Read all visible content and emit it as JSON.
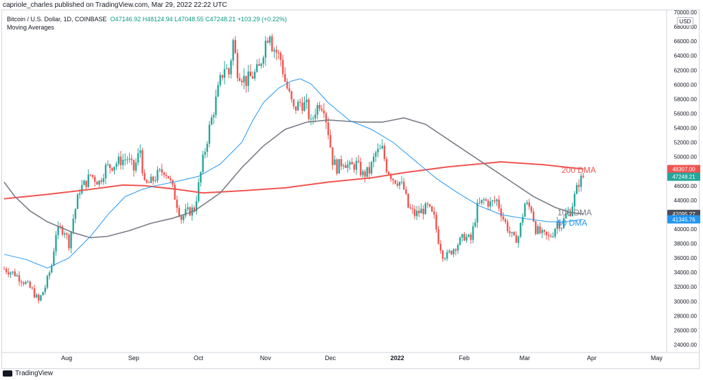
{
  "header": {
    "published": "capriole_charles published on TradingView.com, Mar 29, 2022 22:22 UTC"
  },
  "legend": {
    "symbol": "Bitcoin / U.S. Dollar, 1D, COINBASE",
    "ohlc": "O47146.92 H48124.94 L47048.55 C47248.21 +103.29 (+0.22%)",
    "indicator": "Moving Averages"
  },
  "footer": {
    "brand": "TradingView"
  },
  "currency": "USD",
  "colors": {
    "up": "#26a69a",
    "down": "#ef5350",
    "dma200": "#ef5350",
    "dma100": "#787b86",
    "dma50": "#2196f3"
  },
  "chart_data": {
    "type": "candlestick",
    "y_range": [
      23000,
      70000
    ],
    "y_ticks": [
      24000,
      26000,
      28000,
      30000,
      32000,
      34000,
      36000,
      38000,
      40000,
      42000,
      44000,
      46000,
      48000,
      50000,
      52000,
      54000,
      56000,
      58000,
      60000,
      62000,
      64000,
      66000,
      68000,
      70000
    ],
    "y_tick_labels": [
      "24000.00",
      "26000.00",
      "28000.00",
      "30000.00",
      "32000.00",
      "34000.00",
      "36000.00",
      "38000.00",
      "40000.00",
      "42000.00",
      "44000.00",
      "46000.00",
      "48000.00",
      "50000.00",
      "52000.00",
      "54000.00",
      "56000.00",
      "58000.00",
      "60000.00",
      "62000.00",
      "64000.00",
      "66000.00",
      "68000.00",
      "70000.00"
    ],
    "x_ticks": [
      {
        "label": "Aug",
        "day": 28
      },
      {
        "label": "Sep",
        "day": 59
      },
      {
        "label": "Oct",
        "day": 89
      },
      {
        "label": "Nov",
        "day": 120
      },
      {
        "label": "Dec",
        "day": 150
      },
      {
        "label": "2022",
        "day": 181
      },
      {
        "label": "Feb",
        "day": 212
      },
      {
        "label": "Mar",
        "day": 240
      },
      {
        "label": "Apr",
        "day": 271
      },
      {
        "label": "May",
        "day": 301
      }
    ],
    "close_points": [
      [
        0,
        34500
      ],
      [
        5,
        33800
      ],
      [
        10,
        32500
      ],
      [
        13,
        31500
      ],
      [
        16,
        30000
      ],
      [
        19,
        32000
      ],
      [
        22,
        35000
      ],
      [
        24,
        39500
      ],
      [
        26,
        40000
      ],
      [
        28,
        39800
      ],
      [
        30,
        38000
      ],
      [
        32,
        41500
      ],
      [
        35,
        45500
      ],
      [
        38,
        46500
      ],
      [
        40,
        47500
      ],
      [
        44,
        46500
      ],
      [
        47,
        48500
      ],
      [
        50,
        48800
      ],
      [
        54,
        49500
      ],
      [
        57,
        49800
      ],
      [
        60,
        48200
      ],
      [
        63,
        51000
      ],
      [
        65,
        46000
      ],
      [
        68,
        46500
      ],
      [
        71,
        47500
      ],
      [
        74,
        48200
      ],
      [
        76,
        47300
      ],
      [
        78,
        45500
      ],
      [
        80,
        43500
      ],
      [
        82,
        41500
      ],
      [
        84,
        42200
      ],
      [
        86,
        42500
      ],
      [
        88,
        42800
      ],
      [
        90,
        46000
      ],
      [
        92,
        49500
      ],
      [
        95,
        54000
      ],
      [
        97,
        56500
      ],
      [
        100,
        60500
      ],
      [
        102,
        62500
      ],
      [
        104,
        61500
      ],
      [
        106,
        66000
      ],
      [
        108,
        62000
      ],
      [
        110,
        61200
      ],
      [
        112,
        60500
      ],
      [
        114,
        61000
      ],
      [
        116,
        61500
      ],
      [
        118,
        62200
      ],
      [
        121,
        66000
      ],
      [
        123,
        67500
      ],
      [
        124,
        65500
      ],
      [
        126,
        64500
      ],
      [
        128,
        63500
      ],
      [
        130,
        60500
      ],
      [
        132,
        58500
      ],
      [
        134,
        56500
      ],
      [
        137,
        57500
      ],
      [
        140,
        57000
      ],
      [
        142,
        54500
      ],
      [
        144,
        56500
      ],
      [
        146,
        57500
      ],
      [
        148,
        57000
      ],
      [
        150,
        53500
      ],
      [
        152,
        49500
      ],
      [
        154,
        48500
      ],
      [
        157,
        49500
      ],
      [
        160,
        48500
      ],
      [
        163,
        49000
      ],
      [
        166,
        47500
      ],
      [
        169,
        48000
      ],
      [
        172,
        50500
      ],
      [
        175,
        51000
      ],
      [
        177,
        48500
      ],
      [
        180,
        47000
      ],
      [
        183,
        46500
      ],
      [
        185,
        45500
      ],
      [
        187,
        43000
      ],
      [
        190,
        42000
      ],
      [
        193,
        42500
      ],
      [
        196,
        43000
      ],
      [
        199,
        41500
      ],
      [
        201,
        38500
      ],
      [
        203,
        36500
      ],
      [
        205,
        36300
      ],
      [
        207,
        37000
      ],
      [
        210,
        38000
      ],
      [
        213,
        39000
      ],
      [
        216,
        38500
      ],
      [
        219,
        43000
      ],
      [
        222,
        44000
      ],
      [
        225,
        43500
      ],
      [
        228,
        44000
      ],
      [
        231,
        41500
      ],
      [
        234,
        39500
      ],
      [
        236,
        38500
      ],
      [
        238,
        39000
      ],
      [
        241,
        43500
      ],
      [
        244,
        42800
      ],
      [
        246,
        40000
      ],
      [
        249,
        39200
      ],
      [
        252,
        38800
      ],
      [
        254,
        39500
      ],
      [
        256,
        41000
      ],
      [
        258,
        40500
      ],
      [
        260,
        42000
      ],
      [
        262,
        42500
      ],
      [
        264,
        44500
      ],
      [
        266,
        46500
      ],
      [
        268,
        47200
      ]
    ],
    "series": [
      {
        "name": "200 DMA",
        "color": "#ef5350",
        "points": [
          [
            0,
            44200
          ],
          [
            20,
            44800
          ],
          [
            40,
            45500
          ],
          [
            55,
            46100
          ],
          [
            65,
            46000
          ],
          [
            80,
            45500
          ],
          [
            92,
            45000
          ],
          [
            110,
            45300
          ],
          [
            130,
            45700
          ],
          [
            150,
            46500
          ],
          [
            170,
            47100
          ],
          [
            185,
            47800
          ],
          [
            205,
            48600
          ],
          [
            230,
            49300
          ],
          [
            250,
            48900
          ],
          [
            268,
            48300
          ]
        ],
        "last_label": "48307.00"
      },
      {
        "name": "100 DMA",
        "color": "#787b86",
        "points": [
          [
            0,
            46500
          ],
          [
            5,
            44500
          ],
          [
            12,
            42500
          ],
          [
            20,
            41000
          ],
          [
            32,
            39500
          ],
          [
            40,
            38800
          ],
          [
            48,
            39000
          ],
          [
            58,
            39800
          ],
          [
            68,
            40800
          ],
          [
            78,
            41500
          ],
          [
            88,
            42500
          ],
          [
            100,
            45000
          ],
          [
            110,
            48500
          ],
          [
            120,
            51500
          ],
          [
            130,
            53800
          ],
          [
            140,
            54800
          ],
          [
            150,
            55100
          ],
          [
            165,
            54800
          ],
          [
            175,
            54800
          ],
          [
            185,
            55400
          ],
          [
            195,
            54500
          ],
          [
            205,
            52500
          ],
          [
            215,
            50500
          ],
          [
            225,
            48500
          ],
          [
            235,
            46500
          ],
          [
            245,
            44500
          ],
          [
            255,
            43000
          ],
          [
            262,
            42300
          ],
          [
            268,
            42095
          ]
        ],
        "last_label": "42095.27"
      },
      {
        "name": "50 DMA",
        "color": "#2196f3",
        "points": [
          [
            0,
            36500
          ],
          [
            10,
            35800
          ],
          [
            20,
            34600
          ],
          [
            30,
            36000
          ],
          [
            40,
            39000
          ],
          [
            48,
            42000
          ],
          [
            56,
            44500
          ],
          [
            64,
            45500
          ],
          [
            70,
            46000
          ],
          [
            80,
            46600
          ],
          [
            90,
            47300
          ],
          [
            100,
            49000
          ],
          [
            110,
            52000
          ],
          [
            115,
            55000
          ],
          [
            120,
            57500
          ],
          [
            127,
            59500
          ],
          [
            133,
            60500
          ],
          [
            137,
            60800
          ],
          [
            142,
            60100
          ],
          [
            150,
            57500
          ],
          [
            160,
            55000
          ],
          [
            170,
            53800
          ],
          [
            180,
            52000
          ],
          [
            190,
            49500
          ],
          [
            200,
            47000
          ],
          [
            210,
            45000
          ],
          [
            220,
            43200
          ],
          [
            230,
            42000
          ],
          [
            240,
            41500
          ],
          [
            252,
            41000
          ],
          [
            260,
            41000
          ],
          [
            268,
            41345
          ]
        ],
        "last_label": "41345.76"
      }
    ],
    "current_price_label": "47248.21",
    "annotations": [
      {
        "text": "200 DMA",
        "color": "#ef5350"
      },
      {
        "text": "100 DMA",
        "color": "#787b86"
      },
      {
        "text": "50 DMA",
        "color": "#2196f3"
      }
    ]
  }
}
